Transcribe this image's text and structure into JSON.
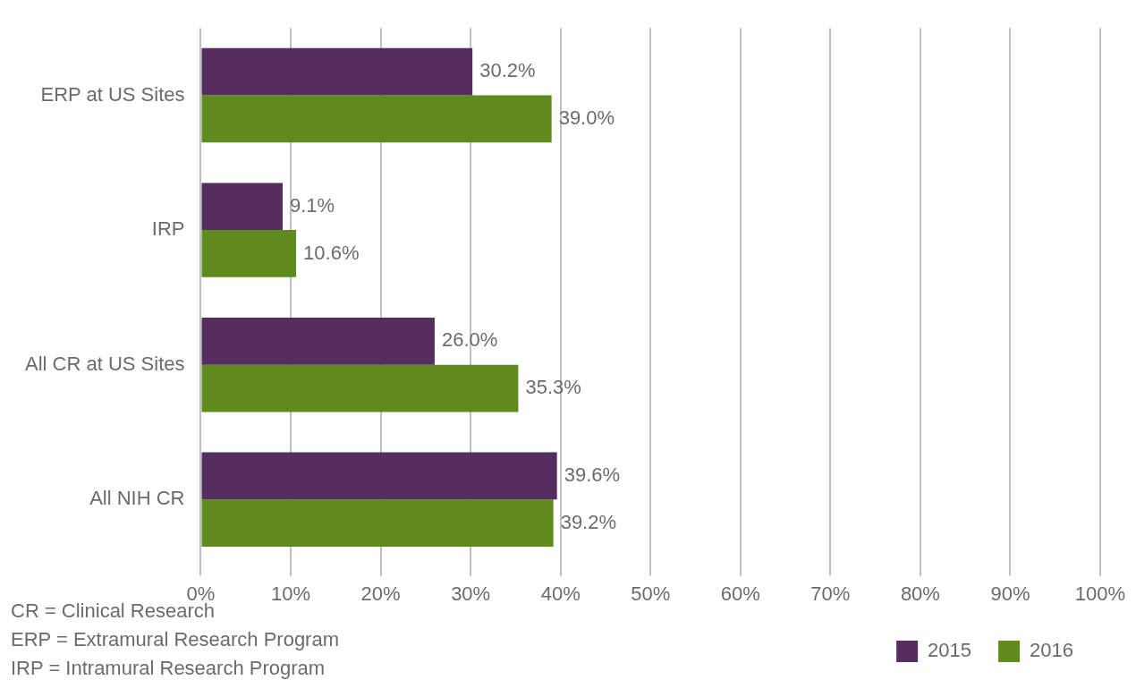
{
  "chart_data": {
    "type": "bar",
    "orientation": "horizontal",
    "categories": [
      "ERP at US Sites",
      "IRP",
      "All CR at US Sites",
      "All NIH CR"
    ],
    "series": [
      {
        "name": "2015",
        "color": "#552d5e",
        "values": [
          30.2,
          9.1,
          26.0,
          39.6
        ],
        "value_labels": [
          "30.2%",
          "9.1%",
          "26.0%",
          "39.6%"
        ]
      },
      {
        "name": "2016",
        "color": "#5e8a1e",
        "values": [
          39.0,
          10.6,
          35.3,
          39.2
        ],
        "value_labels": [
          "39.0%",
          "10.6%",
          "35.3%",
          "39.2%"
        ]
      }
    ],
    "xlim": [
      0,
      100
    ],
    "xticks": [
      {
        "value": 0,
        "label": "0%"
      },
      {
        "value": 10,
        "label": "10%"
      },
      {
        "value": 20,
        "label": "20%"
      },
      {
        "value": 30,
        "label": "30%"
      },
      {
        "value": 40,
        "label": "40%"
      },
      {
        "value": 50,
        "label": "50%"
      },
      {
        "value": 60,
        "label": "60%"
      },
      {
        "value": 70,
        "label": "70%"
      },
      {
        "value": 80,
        "label": "80%"
      },
      {
        "value": 90,
        "label": "90%"
      },
      {
        "value": 100,
        "label": "100%"
      }
    ],
    "grid": "x",
    "legend": "bottom right",
    "annotations": [
      "CR = Clinical Research",
      "ERP = Extramural Research Program",
      "IRP = Intramural Research Program"
    ]
  }
}
